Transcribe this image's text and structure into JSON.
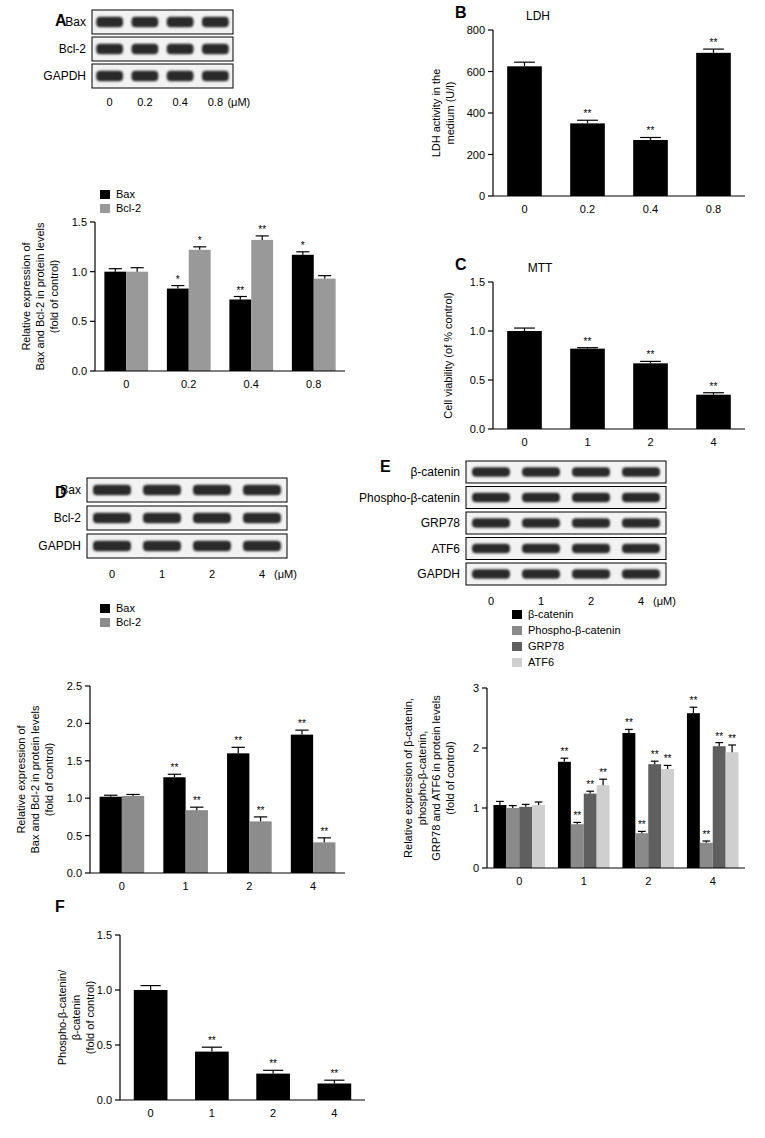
{
  "chart_data": [
    {
      "type": "bar",
      "ylabel": [
        "Relative expression of",
        "Bax and Bcl-2 in protein levels",
        "(fold of control)"
      ],
      "categories": [
        "0",
        "0.2",
        "0.4",
        "0.8"
      ],
      "series": [
        {
          "name": "Bax",
          "color": "#000000",
          "values": [
            1.0,
            0.83,
            0.72,
            1.17
          ],
          "errors": [
            0.03,
            0.03,
            0.03,
            0.03
          ],
          "significance": [
            null,
            "*",
            "**",
            "*"
          ]
        },
        {
          "name": "Bcl-2",
          "color": "#999999",
          "values": [
            1.0,
            1.22,
            1.32,
            0.93
          ],
          "errors": [
            0.04,
            0.03,
            0.04,
            0.03
          ],
          "significance": [
            null,
            "*",
            "**",
            null
          ]
        }
      ],
      "ylim": [
        0,
        1.5
      ],
      "yticks": [
        {
          "value": 0,
          "label": "0.0"
        },
        0.5,
        {
          "value": 1,
          "label": "1.0"
        },
        1.5
      ],
      "legend": "top-left"
    },
    {
      "type": "bar",
      "panel_label": "B",
      "title": "LDH",
      "ylabel": [
        "LDH activity in the",
        "medium (U/l)"
      ],
      "categories": [
        "0",
        "0.2",
        "0.4",
        "0.8"
      ],
      "series": [
        {
          "color": "#000000",
          "values": [
            625,
            350,
            270,
            690
          ],
          "errors": [
            20,
            15,
            12,
            18
          ],
          "significance": [
            null,
            "**",
            "**",
            "**"
          ]
        }
      ],
      "ylim": [
        0,
        800
      ],
      "yticks": [
        0,
        200,
        400,
        600,
        800
      ]
    },
    {
      "type": "bar",
      "panel_label": "C",
      "title": "MTT",
      "ylabel": [
        "Cell viability (of % control)"
      ],
      "categories": [
        "0",
        "1",
        "2",
        "4"
      ],
      "series": [
        {
          "color": "#000000",
          "values": [
            1.0,
            0.82,
            0.67,
            0.35
          ],
          "errors": [
            0.03,
            0.01,
            0.02,
            0.02
          ],
          "significance": [
            null,
            "**",
            "**",
            "**"
          ]
        }
      ],
      "ylim": [
        0,
        1.5
      ],
      "yticks": [
        {
          "value": 0,
          "label": "0.0"
        },
        0.5,
        {
          "value": 1,
          "label": "1.0"
        },
        1.5
      ]
    },
    {
      "type": "bar",
      "ylabel": [
        "Relative expression of",
        "Bax and Bcl-2 in protein levels",
        "(fold of control)"
      ],
      "categories": [
        "0",
        "1",
        "2",
        "4"
      ],
      "series": [
        {
          "name": "Bax",
          "color": "#000000",
          "values": [
            1.02,
            1.28,
            1.6,
            1.85
          ],
          "errors": [
            0.02,
            0.04,
            0.08,
            0.06
          ],
          "significance": [
            null,
            "**",
            "**",
            "**"
          ]
        },
        {
          "name": "Bcl-2",
          "color": "#8c8c8c",
          "values": [
            1.03,
            0.84,
            0.69,
            0.41
          ],
          "errors": [
            0.02,
            0.04,
            0.06,
            0.06
          ],
          "significance": [
            null,
            "**",
            "**",
            "**"
          ]
        }
      ],
      "ylim": [
        0,
        2.5
      ],
      "yticks": [
        {
          "value": 0,
          "label": "0.0"
        },
        0.5,
        {
          "value": 1,
          "label": "1.0"
        },
        1.5,
        {
          "value": 2,
          "label": "2.0"
        },
        2.5
      ],
      "legend": "top-left"
    },
    {
      "type": "bar",
      "ylabel": [
        "Relative expression of β-catenin,",
        "phospho-β-catenin,",
        "GRP78 and ATF6 in protein levels",
        "(fold of control)"
      ],
      "categories": [
        "0",
        "1",
        "2",
        "4"
      ],
      "series": [
        {
          "name": "β-catenin",
          "color": "#000000",
          "values": [
            1.05,
            1.77,
            2.25,
            2.58
          ],
          "errors": [
            0.06,
            0.06,
            0.06,
            0.1
          ],
          "significance": [
            null,
            "**",
            "**",
            "**"
          ]
        },
        {
          "name": "Phospho-β-catenin",
          "color": "#8a8a8a",
          "values": [
            1.0,
            0.73,
            0.58,
            0.42
          ],
          "errors": [
            0.04,
            0.03,
            0.03,
            0.03
          ],
          "significance": [
            null,
            "**",
            "**",
            "**"
          ]
        },
        {
          "name": "GRP78",
          "color": "#5f5f5f",
          "values": [
            1.02,
            1.24,
            1.73,
            2.03
          ],
          "errors": [
            0.04,
            0.04,
            0.05,
            0.06
          ],
          "significance": [
            null,
            "**",
            "**",
            "**"
          ]
        },
        {
          "name": "ATF6",
          "color": "#cfcfcf",
          "values": [
            1.05,
            1.38,
            1.65,
            1.93
          ],
          "errors": [
            0.05,
            0.1,
            0.06,
            0.12
          ],
          "significance": [
            null,
            "**",
            "**",
            "**"
          ]
        }
      ],
      "ylim": [
        0,
        3
      ],
      "yticks": [
        0,
        1,
        2,
        3
      ],
      "legend": "top-left"
    },
    {
      "type": "bar",
      "panel_label": "F",
      "ylabel": [
        "Phospho-β-catenin/",
        "β-catenin",
        "(fold of control)"
      ],
      "categories": [
        "0",
        "1",
        "2",
        "4"
      ],
      "series": [
        {
          "color": "#000000",
          "values": [
            1.0,
            0.44,
            0.24,
            0.15
          ],
          "errors": [
            0.04,
            0.04,
            0.03,
            0.03
          ],
          "significance": [
            null,
            "**",
            "**",
            "**"
          ]
        }
      ],
      "ylim": [
        0,
        1.5
      ],
      "yticks": [
        {
          "value": 0,
          "label": "0.0"
        },
        0.5,
        {
          "value": 1,
          "label": "1.0"
        },
        1.5
      ]
    }
  ],
  "blots": [
    {
      "panel_label": "A",
      "rows": [
        "Bax",
        "Bcl-2",
        "GAPDH"
      ],
      "lanes": [
        "0",
        "0.2",
        "0.4",
        "0.8"
      ],
      "lane_unit": "(μM)"
    },
    {
      "panel_label": "D",
      "rows": [
        "Bax",
        "Bcl-2",
        "GAPDH"
      ],
      "lanes": [
        "0",
        "1",
        "2",
        "4"
      ],
      "lane_unit": "(μM)"
    },
    {
      "panel_label": "E",
      "rows": [
        "β-catenin",
        "Phospho-β-catenin",
        "GRP78",
        "ATF6",
        "GAPDH"
      ],
      "lanes": [
        "0",
        "1",
        "2",
        "4"
      ],
      "lane_unit": "(μM)"
    }
  ]
}
